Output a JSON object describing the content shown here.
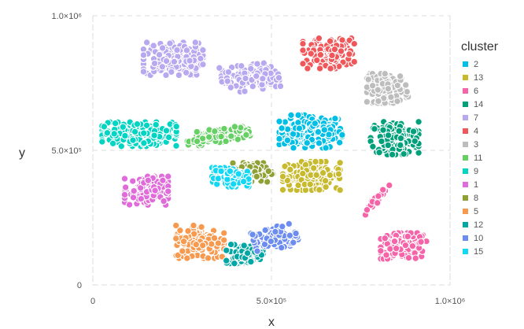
{
  "chart_data": {
    "type": "scatter",
    "xlabel": "x",
    "ylabel": "y",
    "xlim": [
      0,
      1000000
    ],
    "ylim": [
      0,
      1000000
    ],
    "x_ticks": [
      {
        "value": 0,
        "label": "0"
      },
      {
        "value": 500000,
        "label": "5.0×10⁵"
      },
      {
        "value": 1000000,
        "label": "1.0×10⁶"
      }
    ],
    "y_ticks": [
      {
        "value": 0,
        "label": "0"
      },
      {
        "value": 500000,
        "label": "5.0×10⁵"
      },
      {
        "value": 1000000,
        "label": "1.0×10⁶"
      }
    ],
    "grid": true,
    "legend": {
      "title": "cluster",
      "placement": "right"
    },
    "clusters": [
      {
        "name": "2",
        "color": "#00BFE6",
        "center": [
          610000,
          570000
        ],
        "spread": [
          55000,
          38000
        ],
        "count": 190,
        "angle": 0
      },
      {
        "name": "13",
        "color": "#C8BA2E",
        "center": [
          612000,
          405000
        ],
        "spread": [
          50000,
          33000
        ],
        "count": 170,
        "angle": 0
      },
      {
        "name": "6",
        "color": "#F564A8",
        "center": [
          870000,
          145000
        ],
        "spread": [
          40000,
          30000
        ],
        "count": 150,
        "angle": 0
      },
      {
        "name": "14",
        "color": "#00A07A",
        "center": [
          845000,
          545000
        ],
        "spread": [
          42000,
          38000
        ],
        "count": 160,
        "angle": 0
      },
      {
        "name": "7",
        "color": "#B7A8F0",
        "center": [
          225000,
          840000
        ],
        "spread": [
          52000,
          38000
        ],
        "count": 170,
        "angle": 0
      },
      {
        "name": "4",
        "color": "#F0575A",
        "center": [
          660000,
          860000
        ],
        "spread": [
          45000,
          35000
        ],
        "count": 150,
        "angle": 0
      },
      {
        "name": "3",
        "color": "#BDBDBD",
        "center": [
          825000,
          730000
        ],
        "spread": [
          36000,
          34000
        ],
        "count": 140,
        "angle": 0
      },
      {
        "name": "11",
        "color": "#67D065",
        "center": [
          350000,
          555000
        ],
        "spread": [
          55000,
          16000
        ],
        "count": 140,
        "angle": 12
      },
      {
        "name": "9",
        "color": "#00D5C4",
        "center": [
          130000,
          560000
        ],
        "spread": [
          65000,
          28000
        ],
        "count": 190,
        "angle": 0
      },
      {
        "name": "1",
        "color": "#E06BDA",
        "center": [
          150000,
          350000
        ],
        "spread": [
          38000,
          33000
        ],
        "count": 130,
        "angle": 0
      },
      {
        "name": "8",
        "color": "#8FA035",
        "center": [
          448000,
          418000
        ],
        "spread": [
          35000,
          22000
        ],
        "count": 110,
        "angle": 0
      },
      {
        "name": "5",
        "color": "#F79A4F",
        "center": [
          300000,
          160000
        ],
        "spread": [
          42000,
          38000
        ],
        "count": 180,
        "angle": 0
      },
      {
        "name": "12",
        "color": "#00A6A3",
        "center": [
          425000,
          115000
        ],
        "spread": [
          32000,
          22000
        ],
        "count": 100,
        "angle": 0
      },
      {
        "name": "10",
        "color": "#6C8CF0",
        "center": [
          510000,
          175000
        ],
        "spread": [
          38000,
          25000
        ],
        "count": 120,
        "angle": 15
      },
      {
        "name": "15",
        "color": "#13D8F5",
        "center": [
          385000,
          400000
        ],
        "spread": [
          32000,
          22000
        ],
        "count": 110,
        "angle": 0
      },
      {
        "name": "6",
        "color": "#F564A8",
        "center": [
          795000,
          320000
        ],
        "spread": [
          42000,
          6000
        ],
        "count": 30,
        "angle": 58,
        "hide_legend": true
      },
      {
        "name": "7",
        "color": "#B7A8F0",
        "center": [
          440000,
          770000
        ],
        "spread": [
          50000,
          30000
        ],
        "count": 140,
        "angle": 8,
        "hide_legend": true
      }
    ]
  }
}
